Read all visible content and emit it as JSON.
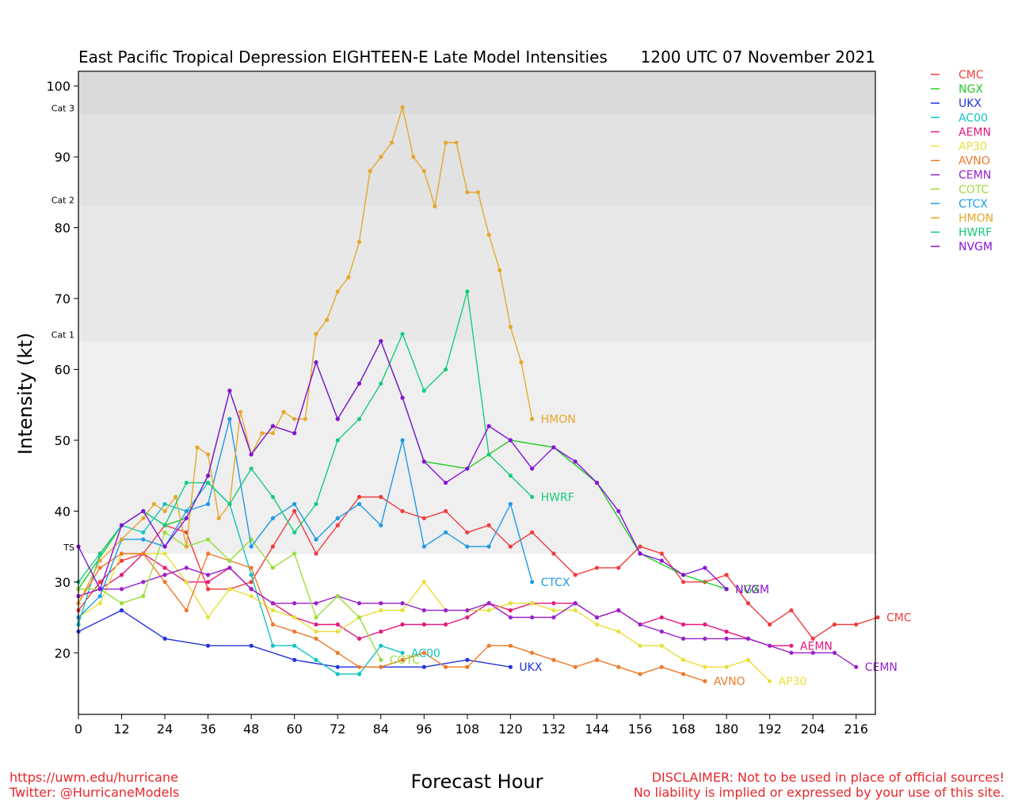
{
  "header": {
    "title": "East Pacific Tropical Depression EIGHTEEN-E Late Model Intensities",
    "datetime": "1200 UTC 07 November 2021"
  },
  "footer": {
    "url": "https://uwm.edu/hurricane",
    "twitter": "Twitter: @HurricaneModels",
    "disclaimer_line1": "DISCLAIMER: Not to be used in place of official sources!",
    "disclaimer_line2": "No liability is implied or expressed by your use of this site."
  },
  "chart_data": {
    "type": "line",
    "title": "East Pacific Tropical Depression EIGHTEEN-E Late Model Intensities",
    "xlabel": "Forecast Hour",
    "ylabel": "Intensity (kt)",
    "xlim": [
      0,
      222
    ],
    "ylim": [
      11,
      102
    ],
    "xticks": [
      0,
      12,
      24,
      36,
      48,
      60,
      72,
      84,
      96,
      108,
      120,
      132,
      144,
      156,
      168,
      180,
      192,
      204,
      216
    ],
    "yticks": [
      20,
      30,
      40,
      50,
      60,
      70,
      80,
      90,
      100
    ],
    "bands": [
      {
        "label": "TS",
        "from": 34,
        "to": 64,
        "color": "#efefef"
      },
      {
        "label": "Cat 1",
        "from": 64,
        "to": 83,
        "color": "#e8e8e8"
      },
      {
        "label": "Cat 2",
        "from": 83,
        "to": 96,
        "color": "#e2e2e2"
      },
      {
        "label": "Cat 3",
        "from": 96,
        "to": 102,
        "color": "#d9d9d9"
      }
    ],
    "category_labels": [
      {
        "label": "TS",
        "value": 34
      },
      {
        "label": "Cat 1",
        "value": 64
      },
      {
        "label": "Cat 2",
        "value": 83
      },
      {
        "label": "Cat 3",
        "value": 96
      }
    ],
    "legend_position": "outside-right",
    "series": [
      {
        "name": "CMC",
        "color": "#f23c3c",
        "x": [
          0,
          6,
          12,
          18,
          24,
          30,
          36,
          42,
          48,
          54,
          60,
          66,
          72,
          78,
          84,
          90,
          96,
          102,
          108,
          114,
          120,
          126,
          132,
          138,
          144,
          150,
          156,
          162,
          168,
          174,
          180,
          186,
          192,
          198,
          204,
          210,
          216,
          222
        ],
        "y": [
          26,
          30,
          33,
          34,
          38,
          37,
          29,
          29,
          30,
          35,
          40,
          34,
          38,
          42,
          42,
          40,
          39,
          40,
          37,
          38,
          35,
          37,
          34,
          31,
          32,
          32,
          35,
          34,
          30,
          30,
          31,
          27,
          24,
          26,
          22,
          24,
          24,
          25
        ]
      },
      {
        "name": "NGX",
        "color": "#22cc22",
        "x": [
          0,
          12,
          18,
          24,
          30,
          36,
          42,
          48,
          54,
          60,
          66,
          72,
          78,
          84,
          90,
          96,
          108,
          120,
          132,
          144,
          156,
          168,
          180
        ],
        "y": [
          29,
          38,
          40,
          38,
          39,
          45,
          57,
          48,
          52,
          51,
          61,
          53,
          58,
          64,
          56,
          47,
          46,
          50,
          49,
          44,
          34,
          31,
          29
        ]
      },
      {
        "name": "UKX",
        "color": "#2233dd",
        "x": [
          0,
          12,
          24,
          36,
          48,
          60,
          72,
          84,
          96,
          108,
          120
        ],
        "y": [
          23,
          26,
          22,
          21,
          21,
          19,
          18,
          18,
          18,
          19,
          18
        ]
      },
      {
        "name": "AC00",
        "color": "#11c4c4",
        "x": [
          0,
          6,
          12,
          18,
          24,
          30,
          36,
          42,
          48,
          54,
          60,
          66,
          72,
          78,
          84,
          90
        ],
        "y": [
          24,
          34,
          38,
          37,
          41,
          40,
          44,
          41,
          31,
          21,
          21,
          19,
          17,
          17,
          21,
          20
        ]
      },
      {
        "name": "AEMN",
        "color": "#e5197e",
        "x": [
          0,
          6,
          12,
          18,
          24,
          30,
          36,
          42,
          48,
          54,
          60,
          66,
          72,
          78,
          84,
          90,
          96,
          102,
          108,
          114,
          120,
          126,
          132,
          138,
          144,
          150,
          156,
          162,
          168,
          174,
          180,
          186,
          192,
          198
        ],
        "y": [
          28,
          29,
          31,
          34,
          32,
          30,
          30,
          32,
          29,
          27,
          25,
          24,
          24,
          22,
          23,
          24,
          24,
          24,
          25,
          27,
          26,
          27,
          27,
          27,
          25,
          26,
          24,
          25,
          24,
          24,
          23,
          22,
          21,
          21
        ]
      },
      {
        "name": "AP30",
        "color": "#e8e03a",
        "x": [
          0,
          6,
          12,
          18,
          24,
          30,
          36,
          42,
          48,
          54,
          60,
          66,
          72,
          78,
          84,
          90,
          96,
          102,
          108,
          114,
          120,
          126,
          132,
          138,
          144,
          150,
          156,
          162,
          168,
          174,
          180,
          186,
          192
        ],
        "y": [
          25,
          27,
          34,
          34,
          34,
          30,
          25,
          29,
          28,
          26,
          25,
          23,
          23,
          25,
          26,
          26,
          30,
          26,
          26,
          26,
          27,
          27,
          26,
          26,
          24,
          23,
          21,
          21,
          19,
          18,
          18,
          19,
          16
        ]
      },
      {
        "name": "AVNO",
        "color": "#ee7a2a",
        "x": [
          0,
          6,
          12,
          18,
          24,
          30,
          36,
          42,
          48,
          54,
          60,
          66,
          72,
          78,
          84,
          90,
          96,
          102,
          108,
          114,
          120,
          126,
          132,
          138,
          144,
          150,
          156,
          162,
          168,
          174
        ],
        "y": [
          27,
          32,
          34,
          34,
          30,
          26,
          34,
          33,
          32,
          24,
          23,
          22,
          20,
          18,
          18,
          19,
          20,
          18,
          18,
          21,
          21,
          20,
          19,
          18,
          19,
          18,
          17,
          18,
          17,
          16
        ]
      },
      {
        "name": "CEMN",
        "color": "#9922cc",
        "x": [
          0,
          6,
          12,
          18,
          24,
          30,
          36,
          42,
          48,
          54,
          60,
          66,
          72,
          78,
          84,
          90,
          96,
          102,
          108,
          114,
          120,
          126,
          132,
          138,
          144,
          150,
          156,
          162,
          168,
          174,
          180,
          186,
          192,
          198,
          204,
          210,
          216
        ],
        "y": [
          28,
          29,
          29,
          30,
          31,
          32,
          31,
          32,
          29,
          27,
          27,
          27,
          28,
          27,
          27,
          27,
          26,
          26,
          26,
          27,
          25,
          25,
          25,
          27,
          25,
          26,
          24,
          23,
          22,
          22,
          22,
          22,
          21,
          20,
          20,
          20,
          18
        ]
      },
      {
        "name": "COTC",
        "color": "#9ade3c",
        "x": [
          0,
          6,
          12,
          18,
          24,
          30,
          36,
          42,
          48,
          54,
          60,
          66,
          72,
          78,
          84
        ],
        "y": [
          29,
          29,
          27,
          28,
          37,
          35,
          36,
          33,
          36,
          32,
          34,
          25,
          28,
          25,
          19
        ]
      },
      {
        "name": "CTCX",
        "color": "#1f9be5",
        "x": [
          0,
          6,
          12,
          18,
          24,
          30,
          36,
          42,
          48,
          54,
          60,
          66,
          72,
          78,
          84,
          90,
          96,
          102,
          108,
          114,
          120,
          126
        ],
        "y": [
          25,
          28,
          36,
          36,
          35,
          40,
          41,
          53,
          35,
          39,
          41,
          36,
          39,
          41,
          38,
          50,
          35,
          37,
          35,
          35,
          41,
          30
        ]
      },
      {
        "name": "HMON",
        "color": "#e5a82b",
        "x": [
          0,
          6,
          12,
          18,
          21,
          24,
          27,
          30,
          33,
          36,
          39,
          42,
          45,
          48,
          51,
          54,
          57,
          60,
          63,
          66,
          69,
          72,
          75,
          78,
          81,
          84,
          87,
          90,
          93,
          96,
          99,
          102,
          105,
          108,
          111,
          114,
          117,
          120,
          123,
          126
        ],
        "y": [
          27,
          33,
          36,
          39,
          41,
          40,
          42,
          35,
          49,
          48,
          39,
          41,
          54,
          48,
          51,
          51,
          54,
          53,
          53,
          65,
          67,
          71,
          73,
          78,
          88,
          90,
          92,
          97,
          90,
          88,
          83,
          92,
          92,
          85,
          85,
          79,
          74,
          66,
          61,
          53
        ]
      },
      {
        "name": "HWRF",
        "color": "#16cc7e",
        "x": [
          0,
          6,
          12,
          18,
          24,
          30,
          36,
          42,
          48,
          54,
          60,
          66,
          72,
          78,
          84,
          90,
          96,
          102,
          108,
          114,
          120,
          126
        ],
        "y": [
          30,
          34,
          38,
          40,
          38,
          44,
          44,
          41,
          46,
          42,
          37,
          41,
          50,
          53,
          58,
          65,
          57,
          60,
          71,
          48,
          45,
          42
        ]
      },
      {
        "name": "NVGM",
        "color": "#8811dd",
        "x": [
          0,
          6,
          12,
          18,
          24,
          30,
          36,
          42,
          48,
          54,
          60,
          66,
          72,
          78,
          84,
          90,
          96,
          102,
          108,
          114,
          120,
          126,
          132,
          138,
          144,
          150,
          156,
          162,
          168,
          174,
          180
        ],
        "y": [
          35,
          29,
          38,
          40,
          35,
          39,
          45,
          57,
          48,
          52,
          51,
          61,
          53,
          58,
          64,
          56,
          47,
          44,
          46,
          52,
          50,
          46,
          49,
          47,
          44,
          40,
          34,
          33,
          31,
          32,
          29
        ]
      }
    ],
    "end_labels": [
      {
        "series": "HMON",
        "text": "HMON"
      },
      {
        "series": "HWRF",
        "text": "HWRF"
      },
      {
        "series": "CTCX",
        "text": "CTCX"
      },
      {
        "series": "UKX",
        "text": "UKX"
      },
      {
        "series": "AC00",
        "text": "AC00"
      },
      {
        "series": "COTC",
        "text": "COTC"
      },
      {
        "series": "AVNO",
        "text": "AVNO"
      },
      {
        "series": "AP30",
        "text": "AP30"
      },
      {
        "series": "CEMN",
        "text": "CEMN"
      },
      {
        "series": "AEMN",
        "text": "AEMN"
      },
      {
        "series": "CMC",
        "text": "CMC"
      },
      {
        "series": "NGX",
        "text": "NGX"
      },
      {
        "series": "NVGM",
        "text": "NVGM"
      }
    ]
  }
}
